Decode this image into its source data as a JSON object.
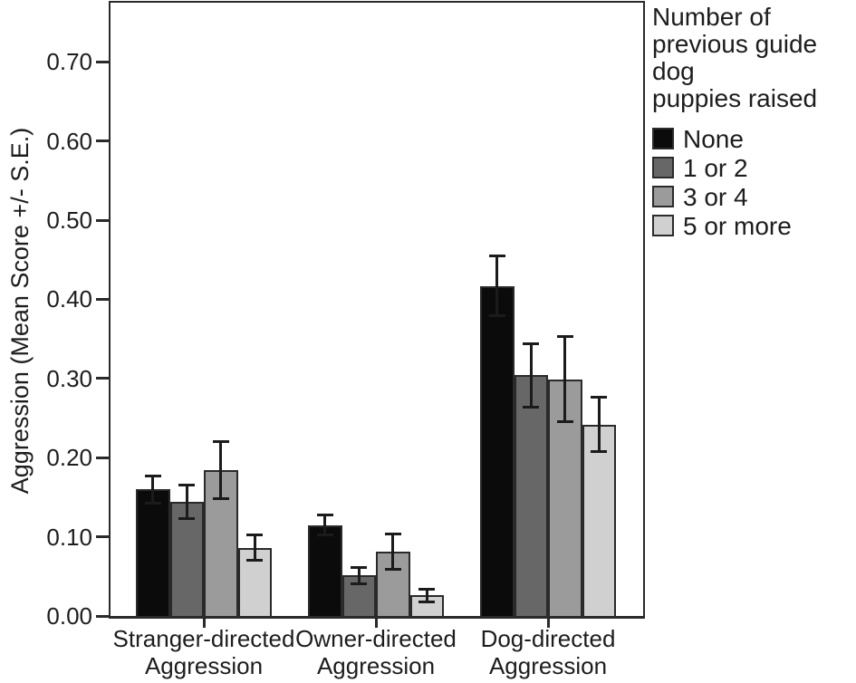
{
  "chart_data": {
    "type": "bar",
    "title": "",
    "xlabel": "",
    "ylabel": "Aggression (Mean Score +/- S.E.)",
    "ylim": [
      0,
      0.775
    ],
    "yticks": [
      0.0,
      0.1,
      0.2,
      0.3,
      0.4,
      0.5,
      0.6,
      0.7
    ],
    "grid": false,
    "error_bars": true,
    "legend_title": "Number of\nprevious guide dog\npuppies raised",
    "legend_position": "outside-top-right",
    "categories": [
      "Stranger-directed\nAggression",
      "Owner-directed\nAggression",
      "Dog-directed\nAggression"
    ],
    "series": [
      {
        "name": "None",
        "color": "#0b0b0b",
        "values": [
          0.16,
          0.115,
          0.417
        ],
        "errors": [
          0.017,
          0.013,
          0.038
        ]
      },
      {
        "name": "1 or 2",
        "color": "#676767",
        "values": [
          0.144,
          0.051,
          0.304
        ],
        "errors": [
          0.021,
          0.01,
          0.04
        ]
      },
      {
        "name": "3 or 4",
        "color": "#9b9b9b",
        "values": [
          0.184,
          0.081,
          0.299
        ],
        "errors": [
          0.036,
          0.022,
          0.054
        ]
      },
      {
        "name": "5 or more",
        "color": "#d0d0d0",
        "values": [
          0.086,
          0.026,
          0.242
        ],
        "errors": [
          0.016,
          0.008,
          0.034
        ]
      }
    ],
    "colors": {
      "axis": "#2a2a2a",
      "text": "#1d1d1d",
      "error_bar": "#1b1b1b",
      "background": "#ffffff"
    }
  }
}
